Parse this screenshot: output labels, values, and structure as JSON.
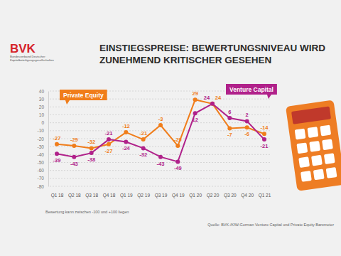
{
  "chart_data": {
    "type": "line",
    "title": "EINSTIEGSPREISE: BEWERTUNGSNIVEAU WIRD ZUNEHMEND KRITISCHER GESEHEN",
    "categories": [
      "Q1 18",
      "Q2 18",
      "Q3 18",
      "Q4 18",
      "Q1 19",
      "Q2 19",
      "Q3 19",
      "Q4 19",
      "Q1 20",
      "Q2 20",
      "Q3 20",
      "Q4 20",
      "Q1 21"
    ],
    "series": [
      {
        "name": "Private Equity",
        "color": "#f07d1a",
        "values": [
          -27,
          -29,
          -32,
          -27,
          -12,
          -21,
          -3,
          -29,
          29,
          24,
          -7,
          -6,
          -14
        ]
      },
      {
        "name": "Venture Capital",
        "color": "#b0218a",
        "values": [
          -39,
          -43,
          -38,
          -21,
          -24,
          -32,
          -43,
          -49,
          12,
          24,
          6,
          2,
          -21
        ]
      }
    ],
    "ylim": [
      -80,
      40
    ],
    "yticks": [
      -80,
      -70,
      -60,
      -50,
      -40,
      -30,
      -20,
      -10,
      0,
      10,
      20,
      30,
      40
    ],
    "grid": true,
    "data_labels": true,
    "marker": "circle",
    "legend": "top",
    "annotations": [
      "BVK",
      "Bundesverband Deutscher Kapitalbeteiligungsgesellschaften",
      "Bewertung kann zwischen -100 und +100 liegen",
      "Quelle: BVK-/KfW-German Venture Capital und Private Equity Barometer"
    ]
  }
}
